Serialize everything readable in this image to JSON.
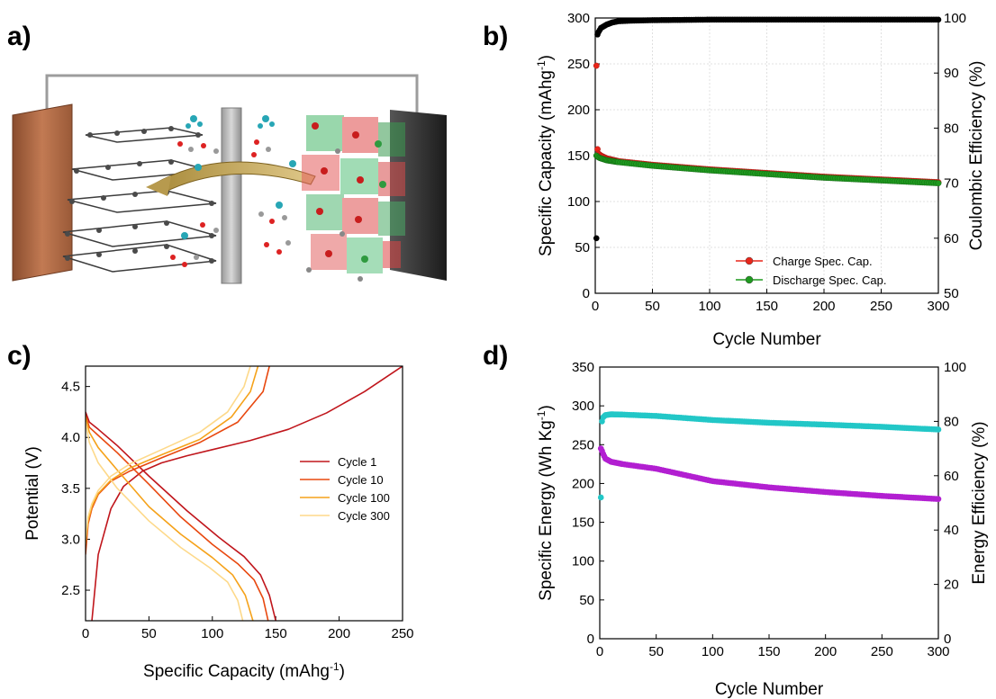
{
  "panels": {
    "a": {
      "letter": "a)"
    },
    "b": {
      "letter": "b)"
    },
    "c": {
      "letter": "c)"
    },
    "d": {
      "letter": "d)"
    }
  },
  "chart_data": [
    {
      "id": "b",
      "type": "scatter",
      "xlabel": "Cycle Number",
      "ylabel_left": "Specific Capacity (mAhg",
      "ylabel_left_sup": "-1",
      "ylabel_left_tail": ")",
      "ylabel_right": "Coulombic Efficiency (%)",
      "xlim": [
        0,
        300
      ],
      "ylim_left": [
        0,
        300
      ],
      "ylim_right": [
        50,
        100
      ],
      "xticks": [
        0,
        50,
        100,
        150,
        200,
        250,
        300
      ],
      "yticks_left": [
        0,
        50,
        100,
        150,
        200,
        250,
        300
      ],
      "yticks_right": [
        50,
        60,
        70,
        80,
        90,
        100
      ],
      "grid": true,
      "legend_position": "bottom-right",
      "series": [
        {
          "name": "Charge Spec. Cap.",
          "axis": "left",
          "color": "#e8261a",
          "x": [
            1,
            2,
            3,
            5,
            10,
            20,
            50,
            100,
            150,
            200,
            250,
            300
          ],
          "y": [
            248,
            157,
            152,
            150,
            147,
            144,
            140,
            135,
            131,
            127,
            124,
            121
          ]
        },
        {
          "name": "Discharge Spec. Cap.",
          "axis": "left",
          "color": "#1f9a1f",
          "x": [
            1,
            2,
            3,
            5,
            10,
            20,
            50,
            100,
            150,
            200,
            250,
            300
          ],
          "y": [
            150,
            149,
            148,
            147,
            145,
            143,
            139,
            134,
            130,
            126,
            123,
            120
          ]
        },
        {
          "axis": "right",
          "color": "#000000",
          "x": [
            1,
            2,
            3,
            5,
            10,
            15,
            20,
            30,
            50,
            100,
            150,
            200,
            250,
            300
          ],
          "y": [
            60,
            97,
            97.5,
            98.2,
            98.8,
            99.2,
            99.4,
            99.5,
            99.6,
            99.7,
            99.7,
            99.7,
            99.7,
            99.7
          ]
        }
      ]
    },
    {
      "id": "c",
      "type": "line",
      "xlabel": "Specific Capacity (mAhg",
      "xlabel_sup": "-1",
      "xlabel_tail": ")",
      "ylabel": "Potential (V)",
      "xlim": [
        0,
        250
      ],
      "ylim": [
        2.2,
        4.7
      ],
      "xticks": [
        0,
        50,
        100,
        150,
        200,
        250
      ],
      "yticks": [
        "2.5",
        "3.0",
        "3.5",
        "4.0",
        "4.5"
      ],
      "legend_position": "right",
      "series": [
        {
          "name": "Cycle 1",
          "color": "#c0161c",
          "charge": {
            "x": [
              5,
              10,
              20,
              30,
              45,
              60,
              80,
              100,
              130,
              160,
              190,
              220,
              250
            ],
            "y": [
              2.2,
              2.85,
              3.3,
              3.52,
              3.67,
              3.75,
              3.82,
              3.88,
              3.97,
              4.08,
              4.24,
              4.45,
              4.7
            ]
          },
          "discharge": {
            "x": [
              0,
              3,
              10,
              25,
              50,
              80,
              105,
              125,
              138,
              145,
              150
            ],
            "y": [
              4.25,
              4.15,
              4.08,
              3.92,
              3.62,
              3.28,
              3.02,
              2.83,
              2.65,
              2.45,
              2.2
            ]
          }
        },
        {
          "name": "Cycle 10",
          "color": "#e8480f",
          "charge": {
            "x": [
              0,
              2,
              5,
              10,
              20,
              35,
              60,
              90,
              120,
              140,
              145
            ],
            "y": [
              2.85,
              3.15,
              3.3,
              3.44,
              3.57,
              3.67,
              3.8,
              3.95,
              4.15,
              4.45,
              4.7
            ]
          },
          "discharge": {
            "x": [
              0,
              3,
              10,
              25,
              50,
              75,
              100,
              120,
              133,
              140,
              144
            ],
            "y": [
              4.22,
              4.1,
              4.02,
              3.85,
              3.54,
              3.22,
              2.95,
              2.76,
              2.6,
              2.42,
              2.2
            ]
          }
        },
        {
          "name": "Cycle 100",
          "color": "#f5a21a",
          "charge": {
            "x": [
              0,
              2,
              5,
              10,
              20,
              35,
              60,
              90,
              115,
              130,
              136
            ],
            "y": [
              2.95,
              3.18,
              3.32,
              3.45,
              3.58,
              3.7,
              3.83,
              3.98,
              4.2,
              4.45,
              4.7
            ]
          },
          "discharge": {
            "x": [
              0,
              3,
              10,
              25,
              50,
              75,
              100,
              116,
              126,
              132
            ],
            "y": [
              4.2,
              4.05,
              3.9,
              3.68,
              3.32,
              3.05,
              2.82,
              2.65,
              2.45,
              2.2
            ]
          }
        },
        {
          "name": "Cycle 300",
          "color": "#fdd98a",
          "charge": {
            "x": [
              0,
              2,
              5,
              10,
              20,
              35,
              60,
              90,
              112,
              125,
              130
            ],
            "y": [
              3.0,
              3.22,
              3.35,
              3.48,
              3.62,
              3.74,
              3.88,
              4.05,
              4.25,
              4.5,
              4.7
            ]
          },
          "discharge": {
            "x": [
              0,
              3,
              10,
              25,
              50,
              75,
              98,
              112,
              120,
              124
            ],
            "y": [
              4.15,
              3.95,
              3.75,
              3.5,
              3.18,
              2.92,
              2.72,
              2.58,
              2.4,
              2.2
            ]
          }
        }
      ]
    },
    {
      "id": "d",
      "type": "scatter",
      "xlabel": "Cycle Number",
      "ylabel_left": "Specific Energy (Wh Kg",
      "ylabel_left_sup": "-1",
      "ylabel_left_tail": ")",
      "ylabel_right": "Energy Efficiency (%)",
      "xlim": [
        0,
        300
      ],
      "ylim_left": [
        0,
        350
      ],
      "ylim_right": [
        0,
        100
      ],
      "xticks": [
        0,
        50,
        100,
        150,
        200,
        250,
        300
      ],
      "yticks_left": [
        0,
        50,
        100,
        150,
        200,
        250,
        300,
        350
      ],
      "yticks_right": [
        0,
        20,
        40,
        60,
        80,
        100
      ],
      "series": [
        {
          "axis": "right",
          "color": "#22c7c7",
          "x": [
            1,
            2,
            3,
            5,
            10,
            20,
            50,
            100,
            150,
            200,
            250,
            300
          ],
          "y": [
            52,
            80,
            81.5,
            82.3,
            82.6,
            82.5,
            82,
            80.5,
            79.5,
            78.8,
            78,
            77
          ]
        },
        {
          "axis": "left",
          "color": "#b21fd1",
          "x": [
            1,
            2,
            3,
            5,
            10,
            20,
            50,
            100,
            150,
            200,
            250,
            300
          ],
          "y": [
            245,
            242,
            238,
            232,
            228,
            225,
            219,
            203,
            195,
            189,
            184,
            180
          ]
        }
      ]
    }
  ]
}
